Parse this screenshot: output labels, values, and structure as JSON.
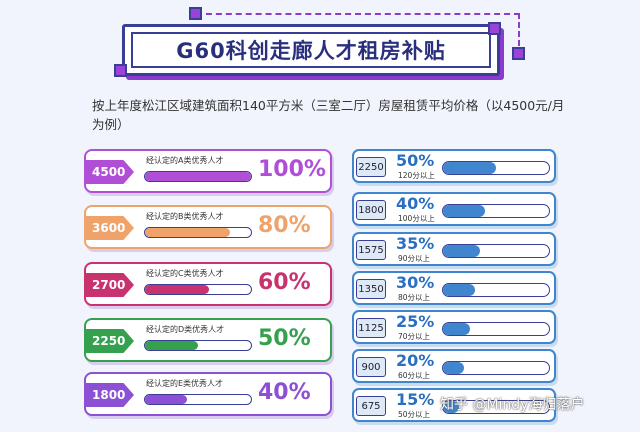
{
  "title": "G60科创走廊人才租房补贴",
  "intro": "按上年度松江区域建筑面积140平方米（三室二厅）房屋租赁平均价格（以4500元/月为例）",
  "colors": {
    "navy": "#3a3f96",
    "purple": "#9b43d8",
    "blue": "#3f86cf"
  },
  "left_cards": [
    {
      "amount": "4500",
      "label": "经认定的A类优秀人才",
      "percent": "100%",
      "fill": 1.0,
      "color": "#b04fd6"
    },
    {
      "amount": "3600",
      "label": "经认定的B类优秀人才",
      "percent": "80%",
      "fill": 0.8,
      "color": "#f0a26b"
    },
    {
      "amount": "2700",
      "label": "经认定的C类优秀人才",
      "percent": "60%",
      "fill": 0.6,
      "color": "#c8336f"
    },
    {
      "amount": "2250",
      "label": "经认定的D类优秀人才",
      "percent": "50%",
      "fill": 0.5,
      "color": "#35a04e"
    },
    {
      "amount": "1800",
      "label": "经认定的E类优秀人才",
      "percent": "40%",
      "fill": 0.4,
      "color": "#8b50d4"
    }
  ],
  "right_cards": [
    {
      "amount": "2250",
      "percent": "50%",
      "sub": "120分以上",
      "fill": 0.5
    },
    {
      "amount": "1800",
      "percent": "40%",
      "sub": "100分以上",
      "fill": 0.4
    },
    {
      "amount": "1575",
      "percent": "35%",
      "sub": "90分以上",
      "fill": 0.35
    },
    {
      "amount": "1350",
      "percent": "30%",
      "sub": "80分以上",
      "fill": 0.3
    },
    {
      "amount": "1125",
      "percent": "25%",
      "sub": "70分以上",
      "fill": 0.25
    },
    {
      "amount": "900",
      "percent": "20%",
      "sub": "60分以上",
      "fill": 0.2
    },
    {
      "amount": "675",
      "percent": "15%",
      "sub": "50分以上",
      "fill": 0.15
    }
  ],
  "watermark": "知乎 @Mindy海归落户"
}
